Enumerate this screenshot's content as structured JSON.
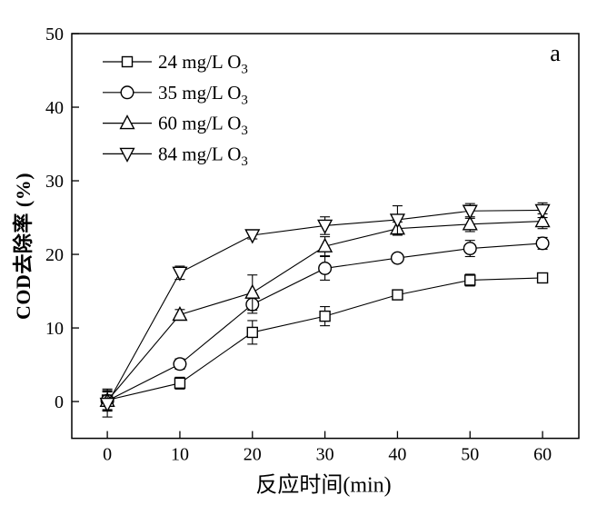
{
  "figure": {
    "panel_label": "a",
    "background": "#ffffff",
    "ink_color": "#000000"
  },
  "chart_data": {
    "type": "line",
    "title": "",
    "xlabel": "反应时间(min)",
    "ylabel": "COD去除率 (%)",
    "x": [
      0,
      10,
      20,
      30,
      40,
      50,
      60
    ],
    "xticks": [
      0,
      10,
      20,
      30,
      40,
      50,
      60
    ],
    "yticks": [
      0,
      10,
      20,
      30,
      40,
      50
    ],
    "xlim": [
      -4.9,
      65
    ],
    "ylim": [
      -5,
      50
    ],
    "grid": false,
    "legend_position": "top-left",
    "marker_fill": "#ffffff",
    "series": [
      {
        "name": "24 mg/L O",
        "name_sub": "3",
        "marker": "square",
        "values": [
          0.2,
          2.5,
          9.4,
          11.6,
          14.5,
          16.5,
          16.8
        ],
        "errors": [
          1.5,
          0.8,
          1.6,
          1.3,
          0.6,
          0.8,
          0.4
        ]
      },
      {
        "name": "35 mg/L O",
        "name_sub": "3",
        "marker": "circle",
        "values": [
          0.1,
          5.1,
          13.2,
          18.1,
          19.5,
          20.8,
          21.5
        ],
        "errors": [
          1.2,
          0.7,
          1.2,
          1.6,
          0.5,
          1.1,
          0.8
        ]
      },
      {
        "name": "60 mg/L O",
        "name_sub": "3",
        "marker": "triangle-up",
        "values": [
          0.1,
          11.8,
          14.8,
          21.1,
          23.5,
          24.1,
          24.5
        ],
        "errors": [
          1.3,
          0.7,
          2.4,
          1.3,
          0.9,
          1.0,
          1.0
        ]
      },
      {
        "name": "84 mg/L O",
        "name_sub": "3",
        "marker": "triangle-down",
        "values": [
          -0.3,
          17.5,
          22.6,
          23.9,
          24.7,
          25.9,
          26.0
        ],
        "errors": [
          1.8,
          0.9,
          0.5,
          1.2,
          1.9,
          1.0,
          1.0
        ]
      }
    ]
  }
}
